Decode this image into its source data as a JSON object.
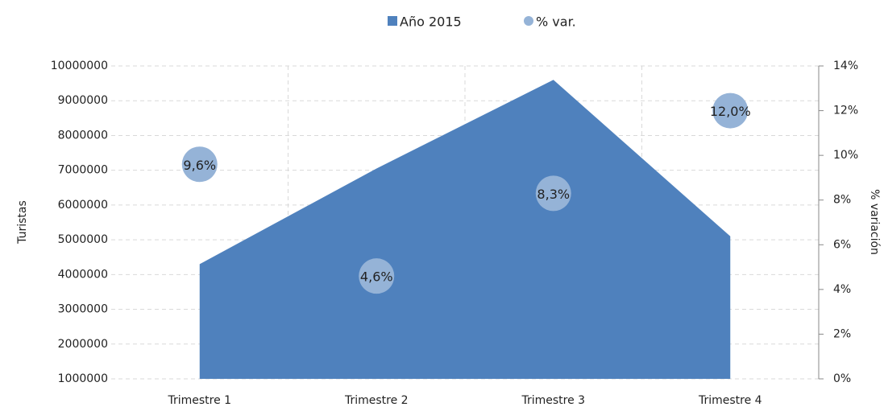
{
  "chart_data": {
    "type": "area-bubble",
    "categories": [
      "Trimestre 1",
      "Trimestre 2",
      "Trimestre 3",
      "Trimestre 4"
    ],
    "series": [
      {
        "name": "Año 2015",
        "color": "#4f81bd",
        "values": [
          4300000,
          7050000,
          9600000,
          5100000
        ]
      },
      {
        "name": "% var.",
        "color": "#95b3d7",
        "axis": "y2",
        "values": [
          9.6,
          4.6,
          8.3,
          12.0
        ],
        "value_labels": [
          "9,6%",
          "4,6%",
          "8,3%",
          "12,0%"
        ]
      }
    ],
    "ylabel": "Turistas",
    "y2label": "% variación",
    "ylim": [
      1000000,
      10000000
    ],
    "yticks": [
      1000000,
      2000000,
      3000000,
      4000000,
      5000000,
      6000000,
      7000000,
      8000000,
      9000000,
      10000000
    ],
    "y2lim": [
      0,
      14
    ],
    "y2ticks": [
      {
        "value": 0,
        "label": "0%"
      },
      {
        "value": 2,
        "label": "2%"
      },
      {
        "value": 4,
        "label": "4%"
      },
      {
        "value": 6,
        "label": "6%"
      },
      {
        "value": 8,
        "label": "8%"
      },
      {
        "value": 10,
        "label": "10%"
      },
      {
        "value": 12,
        "label": "12%"
      },
      {
        "value": 14,
        "label": "14%"
      }
    ],
    "grid": true,
    "legend": "top"
  }
}
